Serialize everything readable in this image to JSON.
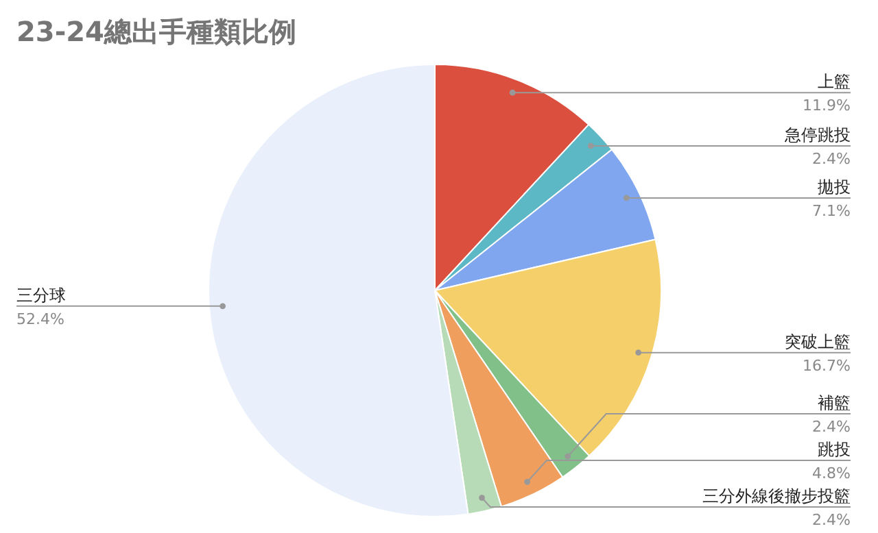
{
  "chart_data": {
    "type": "pie",
    "title": "23-24總出手種類比例",
    "categories": [
      "上籃",
      "急停跳投",
      "拋投",
      "突破上籃",
      "補籃",
      "跳投",
      "三分外線後撤步投籃",
      "三分球"
    ],
    "values": [
      11.9,
      2.4,
      7.1,
      16.7,
      2.4,
      4.8,
      2.4,
      52.4
    ],
    "colors": [
      "#db4f3f",
      "#5bb8c4",
      "#7fa6ef",
      "#f5cf6a",
      "#82c08a",
      "#f09e5d",
      "#b6dbb6",
      "#e9f0fb"
    ],
    "value_labels": [
      "11.9%",
      "2.4%",
      "7.1%",
      "16.7%",
      "2.4%",
      "4.8%",
      "2.4%",
      "52.4%"
    ]
  }
}
